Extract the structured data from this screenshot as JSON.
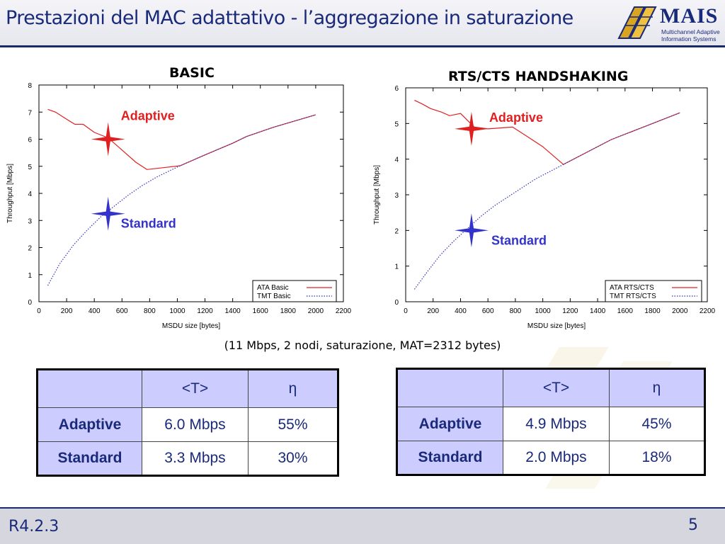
{
  "slide": {
    "title": "Prestazioni del MAC adattativo - l’aggregazione in saturazione",
    "caption": "(11 Mbps, 2 nodi, saturazione, MAT=2312 bytes)",
    "footer_code": "R4.2.3",
    "page_number": "5"
  },
  "logo": {
    "word": "MAIS",
    "line1": "Multichannel Adaptive",
    "line2": "Information Systems"
  },
  "chart_data": [
    {
      "type": "line",
      "title": "BASIC",
      "xlabel": "MSDU size [bytes]",
      "ylabel": "Throughput [Mbps]",
      "xlim": [
        0,
        2200
      ],
      "ylim": [
        0,
        8
      ],
      "xticks": [
        0,
        200,
        400,
        600,
        800,
        1000,
        1200,
        1400,
        1600,
        1800,
        2000,
        2200
      ],
      "yticks": [
        0,
        1,
        2,
        3,
        4,
        5,
        6,
        7,
        8
      ],
      "grid": false,
      "legend_position": "bottom-right",
      "series": [
        {
          "name": "ATA Basic",
          "color": "#e02020",
          "style": "solid",
          "points": [
            [
              64,
              7.1
            ],
            [
              120,
              7.0
            ],
            [
              180,
              6.8
            ],
            [
              260,
              6.55
            ],
            [
              320,
              6.55
            ],
            [
              400,
              6.25
            ],
            [
              500,
              6.05
            ],
            [
              600,
              5.6
            ],
            [
              700,
              5.15
            ],
            [
              780,
              4.88
            ],
            [
              900,
              4.95
            ],
            [
              1020,
              5.02
            ],
            [
              1200,
              5.42
            ],
            [
              1400,
              5.85
            ],
            [
              1500,
              6.1
            ],
            [
              1700,
              6.45
            ],
            [
              1900,
              6.75
            ],
            [
              2000,
              6.9
            ]
          ]
        },
        {
          "name": "TMT Basic",
          "color": "#3030c0",
          "style": "dotted",
          "points": [
            [
              64,
              0.6
            ],
            [
              150,
              1.4
            ],
            [
              250,
              2.1
            ],
            [
              350,
              2.65
            ],
            [
              450,
              3.15
            ],
            [
              550,
              3.55
            ],
            [
              650,
              3.95
            ],
            [
              750,
              4.3
            ],
            [
              850,
              4.6
            ],
            [
              950,
              4.85
            ],
            [
              1020,
              5.02
            ],
            [
              1200,
              5.42
            ],
            [
              1400,
              5.85
            ],
            [
              1500,
              6.1
            ],
            [
              1700,
              6.45
            ],
            [
              1900,
              6.75
            ],
            [
              2000,
              6.9
            ]
          ]
        }
      ],
      "annotations": [
        {
          "label": "Adaptive",
          "x": 500,
          "y": 6.0,
          "color": "#e02020"
        },
        {
          "label": "Standard",
          "x": 500,
          "y": 3.25,
          "color": "#3333cc"
        }
      ]
    },
    {
      "type": "line",
      "title": "RTS/CTS HANDSHAKING",
      "xlabel": "MSDU size [bytes]",
      "ylabel": "Throughput [Mbps]",
      "xlim": [
        0,
        2200
      ],
      "ylim": [
        0,
        6
      ],
      "xticks": [
        0,
        200,
        400,
        600,
        800,
        1000,
        1200,
        1400,
        1600,
        1800,
        2000,
        2200
      ],
      "yticks": [
        0,
        1,
        2,
        3,
        4,
        5,
        6
      ],
      "grid": false,
      "legend_position": "bottom-right",
      "series": [
        {
          "name": "ATA RTS/CTS",
          "color": "#e02020",
          "style": "solid",
          "points": [
            [
              64,
              5.65
            ],
            [
              120,
              5.55
            ],
            [
              180,
              5.42
            ],
            [
              260,
              5.32
            ],
            [
              320,
              5.22
            ],
            [
              400,
              5.28
            ],
            [
              500,
              4.9
            ],
            [
              600,
              4.85
            ],
            [
              780,
              4.9
            ],
            [
              880,
              4.65
            ],
            [
              1000,
              4.35
            ],
            [
              1150,
              3.85
            ],
            [
              1300,
              4.15
            ],
            [
              1500,
              4.55
            ],
            [
              1700,
              4.85
            ],
            [
              1900,
              5.15
            ],
            [
              2000,
              5.3
            ]
          ]
        },
        {
          "name": "TMT RTS/CTS",
          "color": "#3030c0",
          "style": "dotted",
          "points": [
            [
              64,
              0.35
            ],
            [
              150,
              0.8
            ],
            [
              250,
              1.3
            ],
            [
              350,
              1.7
            ],
            [
              450,
              2.05
            ],
            [
              550,
              2.4
            ],
            [
              650,
              2.7
            ],
            [
              750,
              2.95
            ],
            [
              850,
              3.2
            ],
            [
              950,
              3.45
            ],
            [
              1050,
              3.65
            ],
            [
              1150,
              3.85
            ],
            [
              1300,
              4.15
            ],
            [
              1500,
              4.55
            ],
            [
              1700,
              4.85
            ],
            [
              1900,
              5.15
            ],
            [
              2000,
              5.3
            ]
          ]
        }
      ],
      "annotations": [
        {
          "label": "Adaptive",
          "x": 480,
          "y": 4.85,
          "color": "#e02020"
        },
        {
          "label": "Standard",
          "x": 480,
          "y": 2.0,
          "color": "#3333cc"
        }
      ]
    }
  ],
  "tables": {
    "basic": {
      "headers": [
        "",
        "<T>",
        "η"
      ],
      "rows": [
        {
          "label": "Adaptive",
          "throughput": "6.0 Mbps",
          "efficiency": "55%"
        },
        {
          "label": "Standard",
          "throughput": "3.3 Mbps",
          "efficiency": "30%"
        }
      ]
    },
    "rtscts": {
      "headers": [
        "",
        "<T>",
        "η"
      ],
      "rows": [
        {
          "label": "Adaptive",
          "throughput": "4.9 Mbps",
          "efficiency": "45%"
        },
        {
          "label": "Standard",
          "throughput": "2.0 Mbps",
          "efficiency": "18%"
        }
      ]
    }
  },
  "colors": {
    "title_blue": "#1a2a7a",
    "table_header": "#ccccff",
    "adaptive_red": "#e02020",
    "standard_blue": "#3333cc"
  }
}
